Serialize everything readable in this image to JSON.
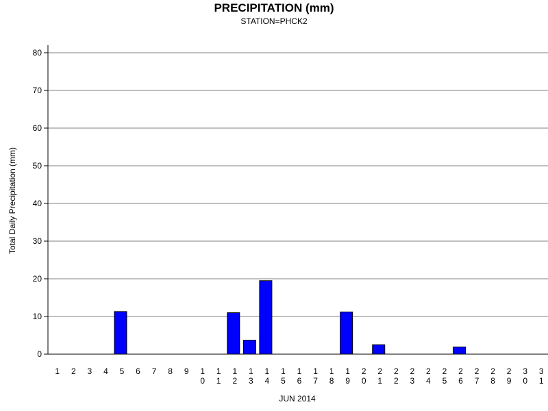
{
  "chart_data": {
    "type": "bar",
    "title": "PRECIPITATION (mm)",
    "subtitle": "STATION=PHCK2",
    "xlabel": "JUN 2014",
    "ylabel": "Total Daily Precipitation (mm)",
    "ylim": [
      0,
      80
    ],
    "yticks": [
      0,
      10,
      20,
      30,
      40,
      50,
      60,
      70,
      80
    ],
    "grid": true,
    "bar_color": "#0000ff",
    "categories": [
      "1",
      "2",
      "3",
      "4",
      "5",
      "6",
      "7",
      "8",
      "9",
      "10",
      "11",
      "12",
      "13",
      "14",
      "15",
      "16",
      "17",
      "18",
      "19",
      "20",
      "21",
      "22",
      "23",
      "24",
      "25",
      "26",
      "27",
      "28",
      "29",
      "30",
      "31"
    ],
    "values": [
      0,
      0,
      0,
      0,
      11.3,
      0,
      0,
      0,
      0,
      0,
      0,
      11.0,
      3.7,
      19.5,
      0,
      0,
      0,
      0,
      11.2,
      0,
      2.5,
      0,
      0,
      0,
      0,
      1.9,
      0,
      0,
      0,
      0,
      0
    ]
  }
}
